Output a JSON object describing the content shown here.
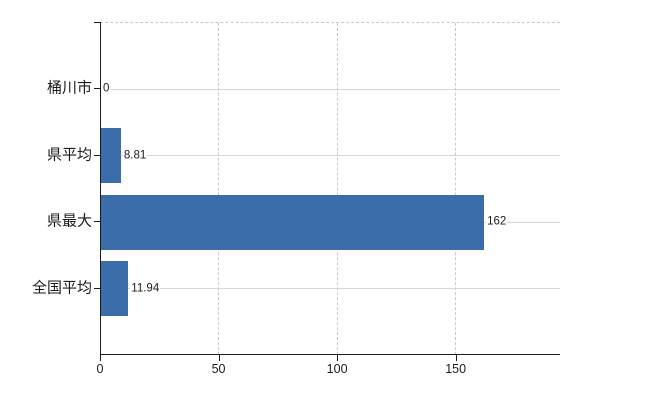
{
  "chart_data": {
    "type": "bar",
    "orientation": "horizontal",
    "title": "",
    "categories": [
      "桶川市",
      "県平均",
      "県最大",
      "全国平均"
    ],
    "values": [
      0,
      8.81,
      162,
      11.94
    ],
    "value_labels": [
      "0",
      "8.81",
      "162",
      "11.94"
    ],
    "x_tick_values": [
      0,
      50,
      100,
      150
    ],
    "x_tick_labels": [
      "0",
      "50",
      "100",
      "150"
    ],
    "xlim": [
      0,
      194
    ],
    "grid": "on",
    "legend": "none",
    "colors": {
      "bar": "#3c6dab",
      "axis": "#1b1b1b",
      "h_grid": "#cfd9cf",
      "v_grid": "#c9c9c9",
      "text": "#1b1b1b",
      "background": "#ffffff"
    }
  }
}
